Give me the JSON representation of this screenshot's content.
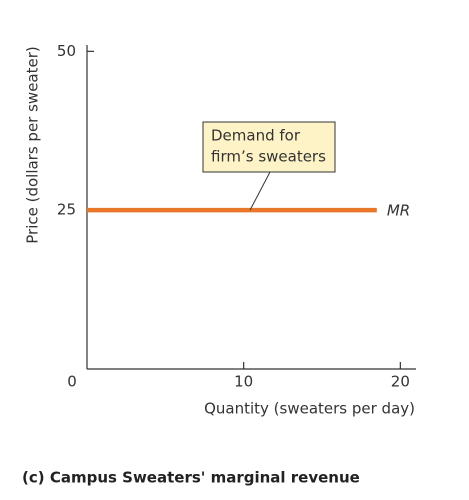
{
  "chart_data": {
    "type": "line",
    "caption": "(c) Campus Sweaters' marginal revenue",
    "x_label": "Quantity (sweaters per day)",
    "y_label": "Price (dollars per sweater)",
    "xlim": [
      0,
      21
    ],
    "ylim": [
      0,
      51
    ],
    "xticks": [
      10,
      20
    ],
    "yticks": [
      0,
      25,
      50
    ],
    "x": [
      0,
      18.5
    ],
    "series": [
      {
        "name": "MR",
        "color": "#e8772a",
        "values": [
          25,
          25
        ]
      }
    ],
    "annotation": {
      "lines": [
        "Demand for",
        "firm’s sweaters"
      ]
    }
  }
}
